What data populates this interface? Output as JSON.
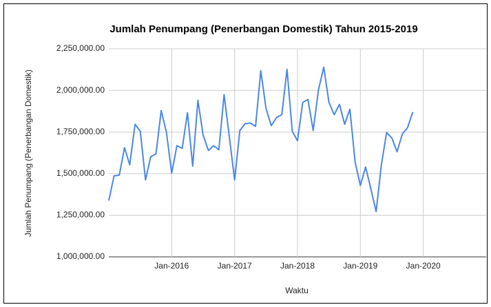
{
  "chart_data": {
    "type": "line",
    "title": "Jumlah Penumpang (Penerbangan Domestik) Tahun 2015-2019",
    "x_label": "Waktu",
    "y_label": "Jumlah Penumpang (Penerbangan Domestik)",
    "x": [
      "2015-01",
      "2015-02",
      "2015-03",
      "2015-04",
      "2015-05",
      "2015-06",
      "2015-07",
      "2015-08",
      "2015-09",
      "2015-10",
      "2015-11",
      "2015-12",
      "2016-01",
      "2016-02",
      "2016-03",
      "2016-04",
      "2016-05",
      "2016-06",
      "2016-07",
      "2016-08",
      "2016-09",
      "2016-10",
      "2016-11",
      "2016-12",
      "2017-01",
      "2017-02",
      "2017-03",
      "2017-04",
      "2017-05",
      "2017-06",
      "2017-07",
      "2017-08",
      "2017-09",
      "2017-10",
      "2017-11",
      "2017-12",
      "2018-01",
      "2018-02",
      "2018-03",
      "2018-04",
      "2018-05",
      "2018-06",
      "2018-07",
      "2018-08",
      "2018-09",
      "2018-10",
      "2018-11",
      "2018-12",
      "2019-01",
      "2019-02",
      "2019-03",
      "2019-04",
      "2019-05",
      "2019-06",
      "2019-07",
      "2019-08",
      "2019-09",
      "2019-10",
      "2019-11"
    ],
    "series": [
      {
        "name": "Jumlah Penumpang",
        "color": "#4a86e8",
        "values": [
          1338000,
          1487000,
          1491000,
          1656000,
          1553000,
          1796000,
          1755000,
          1462000,
          1602000,
          1619000,
          1879000,
          1747000,
          1503000,
          1668000,
          1652000,
          1866000,
          1545000,
          1940000,
          1730000,
          1639000,
          1668000,
          1643000,
          1974000,
          1718000,
          1462000,
          1759000,
          1800000,
          1804000,
          1784000,
          2118000,
          1891000,
          1788000,
          1837000,
          1854000,
          2126000,
          1755000,
          1697000,
          1928000,
          1945000,
          1759000,
          2002000,
          2139000,
          1928000,
          1854000,
          1916000,
          1796000,
          1887000,
          1569000,
          1429000,
          1540000,
          1408000,
          1272000,
          1553000,
          1747000,
          1714000,
          1631000,
          1738000,
          1776000,
          1870000
        ]
      }
    ],
    "xlim": [
      "2015-01",
      "2021-01"
    ],
    "xticks": [
      {
        "value": "2016-01",
        "label": "Jan-2016"
      },
      {
        "value": "2017-01",
        "label": "Jan-2017"
      },
      {
        "value": "2018-01",
        "label": "Jan-2018"
      },
      {
        "value": "2019-01",
        "label": "Jan-2019"
      },
      {
        "value": "2020-01",
        "label": "Jan-2020"
      }
    ],
    "ylim": [
      1000000,
      2250000
    ],
    "yticks": [
      {
        "value": 1000000,
        "label": "1,000,000.00"
      },
      {
        "value": 1250000,
        "label": "1,250,000.00"
      },
      {
        "value": 1500000,
        "label": "1,500,000.00"
      },
      {
        "value": 1750000,
        "label": "1,750,000.00"
      },
      {
        "value": 2000000,
        "label": "2,000,000.00"
      },
      {
        "value": 2250000,
        "label": "2,250,000.00"
      }
    ],
    "grid": true,
    "legend": false
  }
}
